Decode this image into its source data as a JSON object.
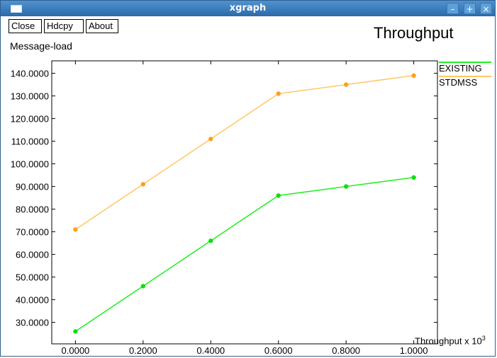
{
  "window": {
    "title": "xgraph",
    "minimize_glyph": "–",
    "maximize_glyph": "+",
    "close_glyph": "×"
  },
  "toolbar": {
    "close_label": "Close",
    "hdcpy_label": "Hdcpy",
    "about_label": "About"
  },
  "chart_data": {
    "type": "line",
    "title": "Throughput",
    "ylabel": "Message-load",
    "xlabel": "Throughput x 10",
    "xlabel_exponent": "3",
    "x": [
      0.0,
      0.2,
      0.4,
      0.6,
      0.8,
      1.0
    ],
    "x_tick_labels": [
      "0.0000",
      "0.2000",
      "0.4000",
      "0.6000",
      "0.8000",
      "1.0000"
    ],
    "y_ticks": [
      30,
      40,
      50,
      60,
      70,
      80,
      90,
      100,
      110,
      120,
      130,
      140
    ],
    "y_tick_labels": [
      "30.0000",
      "40.0000",
      "50.0000",
      "60.0000",
      "70.0000",
      "80.0000",
      "90.0000",
      "100.0000",
      "110.0000",
      "120.0000",
      "130.0000",
      "140.0000"
    ],
    "xlim": [
      -0.07,
      1.07
    ],
    "ylim": [
      20.5,
      145.5
    ],
    "grid": false,
    "legend_placement": "right",
    "series": [
      {
        "name": "EXISTING",
        "color": "#22ee22",
        "marker_color": "#11dd11",
        "values": [
          26,
          46,
          66,
          86,
          90,
          94
        ]
      },
      {
        "name": "STDMSS",
        "color": "#ffc766",
        "marker_color": "#ff9f1a",
        "values": [
          71,
          91,
          111,
          131,
          135,
          139
        ]
      }
    ]
  }
}
